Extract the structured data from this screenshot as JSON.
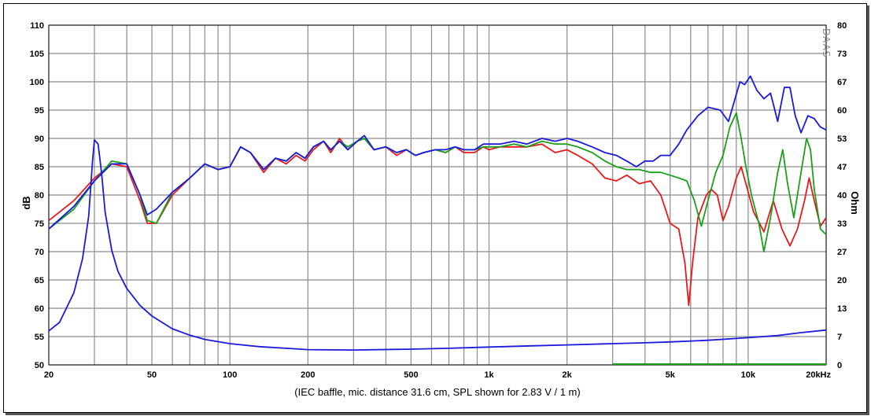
{
  "chart_data": {
    "type": "line",
    "xlabel": "(IEC baffle, mic. distance 31.6 cm, SPL shown for 2.83 V / 1 m)",
    "ylabel": "dB",
    "y2label": "Ohm",
    "watermark": "DAAS",
    "x_scale": "log",
    "xlim": [
      20,
      20000
    ],
    "ylim": [
      50,
      110
    ],
    "y2lim": [
      0,
      80
    ],
    "grid": true,
    "x_ticks": [
      {
        "v": 20,
        "label": "20"
      },
      {
        "v": 50,
        "label": "50"
      },
      {
        "v": 100,
        "label": "100"
      },
      {
        "v": 200,
        "label": "200"
      },
      {
        "v": 500,
        "label": "500"
      },
      {
        "v": 1000,
        "label": "1k"
      },
      {
        "v": 2000,
        "label": "2k"
      },
      {
        "v": 5000,
        "label": "5k"
      },
      {
        "v": 10000,
        "label": "10k"
      },
      {
        "v": 20000,
        "label": "20kHz"
      }
    ],
    "y_ticks": [
      "50",
      "55",
      "60",
      "65",
      "70",
      "75",
      "80",
      "85",
      "90",
      "95",
      "100",
      "105",
      "110"
    ],
    "y2_ticks": [
      "0",
      "7",
      "13",
      "20",
      "27",
      "33",
      "40",
      "47",
      "53",
      "60",
      "67",
      "73",
      "80"
    ],
    "series": [
      {
        "color": "#e8191b",
        "values": [
          [
            20,
            75.5
          ],
          [
            25,
            79
          ],
          [
            30,
            83
          ],
          [
            35,
            85.5
          ],
          [
            40,
            85
          ],
          [
            45,
            79
          ],
          [
            48,
            75
          ],
          [
            52,
            75
          ],
          [
            60,
            80
          ],
          [
            70,
            83
          ],
          [
            80,
            85.5
          ],
          [
            90,
            84.5
          ],
          [
            100,
            85
          ],
          [
            110,
            88.5
          ],
          [
            120,
            87.5
          ],
          [
            135,
            84
          ],
          [
            150,
            86.5
          ],
          [
            165,
            85.5
          ],
          [
            180,
            87
          ],
          [
            195,
            86
          ],
          [
            210,
            88
          ],
          [
            230,
            89.5
          ],
          [
            245,
            87.5
          ],
          [
            265,
            90
          ],
          [
            285,
            88
          ],
          [
            310,
            89.5
          ],
          [
            330,
            90
          ],
          [
            360,
            88
          ],
          [
            400,
            88.5
          ],
          [
            440,
            87
          ],
          [
            480,
            88
          ],
          [
            520,
            87
          ],
          [
            560,
            87.5
          ],
          [
            620,
            88
          ],
          [
            680,
            87.5
          ],
          [
            740,
            88.5
          ],
          [
            800,
            87.5
          ],
          [
            880,
            87.5
          ],
          [
            950,
            88.5
          ],
          [
            1000,
            88
          ],
          [
            1100,
            88.5
          ],
          [
            1250,
            88.5
          ],
          [
            1400,
            88.5
          ],
          [
            1600,
            89
          ],
          [
            1800,
            87.5
          ],
          [
            2000,
            88
          ],
          [
            2200,
            87
          ],
          [
            2500,
            85.5
          ],
          [
            2800,
            83
          ],
          [
            3100,
            82.5
          ],
          [
            3400,
            83.5
          ],
          [
            3800,
            82
          ],
          [
            4200,
            82.5
          ],
          [
            4600,
            80
          ],
          [
            5000,
            75
          ],
          [
            5400,
            74
          ],
          [
            5700,
            68
          ],
          [
            5900,
            60.5
          ],
          [
            6100,
            68
          ],
          [
            6400,
            76
          ],
          [
            6900,
            80
          ],
          [
            7200,
            81
          ],
          [
            7600,
            80
          ],
          [
            8000,
            75.5
          ],
          [
            8400,
            78
          ],
          [
            9000,
            83
          ],
          [
            9400,
            85
          ],
          [
            9800,
            82
          ],
          [
            10500,
            77
          ],
          [
            11500,
            73.5
          ],
          [
            12500,
            79
          ],
          [
            13500,
            74
          ],
          [
            14500,
            71
          ],
          [
            15500,
            74
          ],
          [
            16500,
            79
          ],
          [
            17200,
            83
          ],
          [
            18000,
            79
          ],
          [
            19000,
            74.5
          ],
          [
            20000,
            76
          ]
        ]
      },
      {
        "color": "#1aa01a",
        "values": [
          [
            20,
            74
          ],
          [
            25,
            77.5
          ],
          [
            30,
            82.5
          ],
          [
            35,
            86
          ],
          [
            40,
            85.5
          ],
          [
            45,
            80
          ],
          [
            48,
            75.5
          ],
          [
            52,
            75
          ],
          [
            60,
            80.5
          ],
          [
            70,
            83
          ],
          [
            80,
            85.5
          ],
          [
            90,
            84.5
          ],
          [
            100,
            85
          ],
          [
            110,
            88.5
          ],
          [
            120,
            87.5
          ],
          [
            135,
            84.5
          ],
          [
            150,
            86.5
          ],
          [
            165,
            86
          ],
          [
            180,
            87.5
          ],
          [
            195,
            86.5
          ],
          [
            210,
            88.5
          ],
          [
            230,
            89.5
          ],
          [
            245,
            88
          ],
          [
            265,
            89.5
          ],
          [
            285,
            88.5
          ],
          [
            310,
            89.5
          ],
          [
            330,
            90
          ],
          [
            360,
            88
          ],
          [
            400,
            88.5
          ],
          [
            440,
            87.5
          ],
          [
            480,
            88
          ],
          [
            520,
            87
          ],
          [
            560,
            87.5
          ],
          [
            620,
            88
          ],
          [
            680,
            87.5
          ],
          [
            740,
            88.5
          ],
          [
            800,
            88
          ],
          [
            880,
            88
          ],
          [
            950,
            88.5
          ],
          [
            1000,
            88.5
          ],
          [
            1100,
            88.5
          ],
          [
            1250,
            89
          ],
          [
            1400,
            88.5
          ],
          [
            1600,
            89.5
          ],
          [
            1800,
            89
          ],
          [
            2000,
            89
          ],
          [
            2200,
            88.5
          ],
          [
            2500,
            87.5
          ],
          [
            2800,
            86
          ],
          [
            3100,
            85
          ],
          [
            3400,
            84.5
          ],
          [
            3800,
            84.5
          ],
          [
            4200,
            84
          ],
          [
            4600,
            84
          ],
          [
            5000,
            83.5
          ],
          [
            5400,
            83
          ],
          [
            5800,
            82.5
          ],
          [
            6200,
            79
          ],
          [
            6600,
            74.5
          ],
          [
            7000,
            79
          ],
          [
            7500,
            84
          ],
          [
            8000,
            87
          ],
          [
            8500,
            92
          ],
          [
            9000,
            94.5
          ],
          [
            9400,
            90
          ],
          [
            9800,
            85
          ],
          [
            10300,
            80
          ],
          [
            11000,
            75
          ],
          [
            11500,
            70
          ],
          [
            12200,
            76
          ],
          [
            13000,
            84
          ],
          [
            13600,
            88
          ],
          [
            14200,
            82
          ],
          [
            15000,
            76
          ],
          [
            16000,
            84
          ],
          [
            16800,
            90
          ],
          [
            17400,
            88
          ],
          [
            18000,
            81
          ],
          [
            19000,
            74
          ],
          [
            20000,
            73
          ]
        ]
      },
      {
        "color": "#1a1adc",
        "values": [
          [
            20,
            74
          ],
          [
            25,
            78
          ],
          [
            30,
            82.5
          ],
          [
            35,
            85.5
          ],
          [
            40,
            85.5
          ],
          [
            45,
            80
          ],
          [
            48,
            76.5
          ],
          [
            52,
            77.5
          ],
          [
            60,
            80.5
          ],
          [
            70,
            83
          ],
          [
            80,
            85.5
          ],
          [
            90,
            84.5
          ],
          [
            100,
            85
          ],
          [
            110,
            88.5
          ],
          [
            120,
            87.5
          ],
          [
            135,
            84.5
          ],
          [
            150,
            86.5
          ],
          [
            165,
            86
          ],
          [
            180,
            87.5
          ],
          [
            195,
            86.5
          ],
          [
            210,
            88.5
          ],
          [
            230,
            89.5
          ],
          [
            245,
            88
          ],
          [
            265,
            89.5
          ],
          [
            285,
            88
          ],
          [
            310,
            89.5
          ],
          [
            330,
            90.5
          ],
          [
            360,
            88
          ],
          [
            400,
            88.5
          ],
          [
            440,
            87.5
          ],
          [
            480,
            88
          ],
          [
            520,
            87
          ],
          [
            560,
            87.5
          ],
          [
            620,
            88
          ],
          [
            680,
            88
          ],
          [
            740,
            88.5
          ],
          [
            800,
            88
          ],
          [
            880,
            88
          ],
          [
            950,
            89
          ],
          [
            1000,
            89
          ],
          [
            1100,
            89
          ],
          [
            1250,
            89.5
          ],
          [
            1400,
            89
          ],
          [
            1600,
            90
          ],
          [
            1800,
            89.5
          ],
          [
            2000,
            90
          ],
          [
            2200,
            89.5
          ],
          [
            2500,
            88.5
          ],
          [
            2800,
            87.5
          ],
          [
            3100,
            87
          ],
          [
            3400,
            86
          ],
          [
            3700,
            85
          ],
          [
            4000,
            86
          ],
          [
            4300,
            86
          ],
          [
            4600,
            87
          ],
          [
            5000,
            87
          ],
          [
            5400,
            89
          ],
          [
            5800,
            91.5
          ],
          [
            6400,
            94
          ],
          [
            7000,
            95.5
          ],
          [
            7800,
            95
          ],
          [
            8400,
            93
          ],
          [
            8900,
            97
          ],
          [
            9300,
            100
          ],
          [
            9700,
            99.5
          ],
          [
            10200,
            101
          ],
          [
            10800,
            98.5
          ],
          [
            11500,
            97
          ],
          [
            12200,
            98
          ],
          [
            13000,
            93
          ],
          [
            13800,
            99
          ],
          [
            14500,
            99
          ],
          [
            15200,
            94
          ],
          [
            16000,
            91
          ],
          [
            17000,
            94
          ],
          [
            18000,
            93.5
          ],
          [
            19000,
            92
          ],
          [
            20000,
            91.5
          ]
        ]
      },
      {
        "color": "#1a1adc",
        "axis": "right",
        "name": "",
        "values": [
          [
            20,
            8
          ],
          [
            22,
            10
          ],
          [
            25,
            17
          ],
          [
            27,
            25
          ],
          [
            28.5,
            35
          ],
          [
            29.5,
            48
          ],
          [
            30,
            53
          ],
          [
            31,
            52
          ],
          [
            32,
            45
          ],
          [
            33,
            36
          ],
          [
            35,
            27
          ],
          [
            37,
            22
          ],
          [
            40,
            18
          ],
          [
            45,
            14
          ],
          [
            50,
            11.5
          ],
          [
            60,
            8.5
          ],
          [
            70,
            7
          ],
          [
            80,
            6
          ],
          [
            100,
            5
          ],
          [
            130,
            4.3
          ],
          [
            200,
            3.6
          ],
          [
            300,
            3.5
          ],
          [
            500,
            3.7
          ],
          [
            700,
            3.9
          ],
          [
            1000,
            4.2
          ],
          [
            1500,
            4.5
          ],
          [
            2000,
            4.7
          ],
          [
            3000,
            5
          ],
          [
            4000,
            5.2
          ],
          [
            5000,
            5.4
          ],
          [
            7000,
            5.8
          ],
          [
            10000,
            6.4
          ],
          [
            13000,
            6.9
          ],
          [
            16000,
            7.6
          ],
          [
            20000,
            8.2
          ]
        ]
      }
    ],
    "annotations": [
      {
        "type": "green-segment",
        "x_start": 3000,
        "x_end": 20000,
        "y": 50
      }
    ]
  }
}
